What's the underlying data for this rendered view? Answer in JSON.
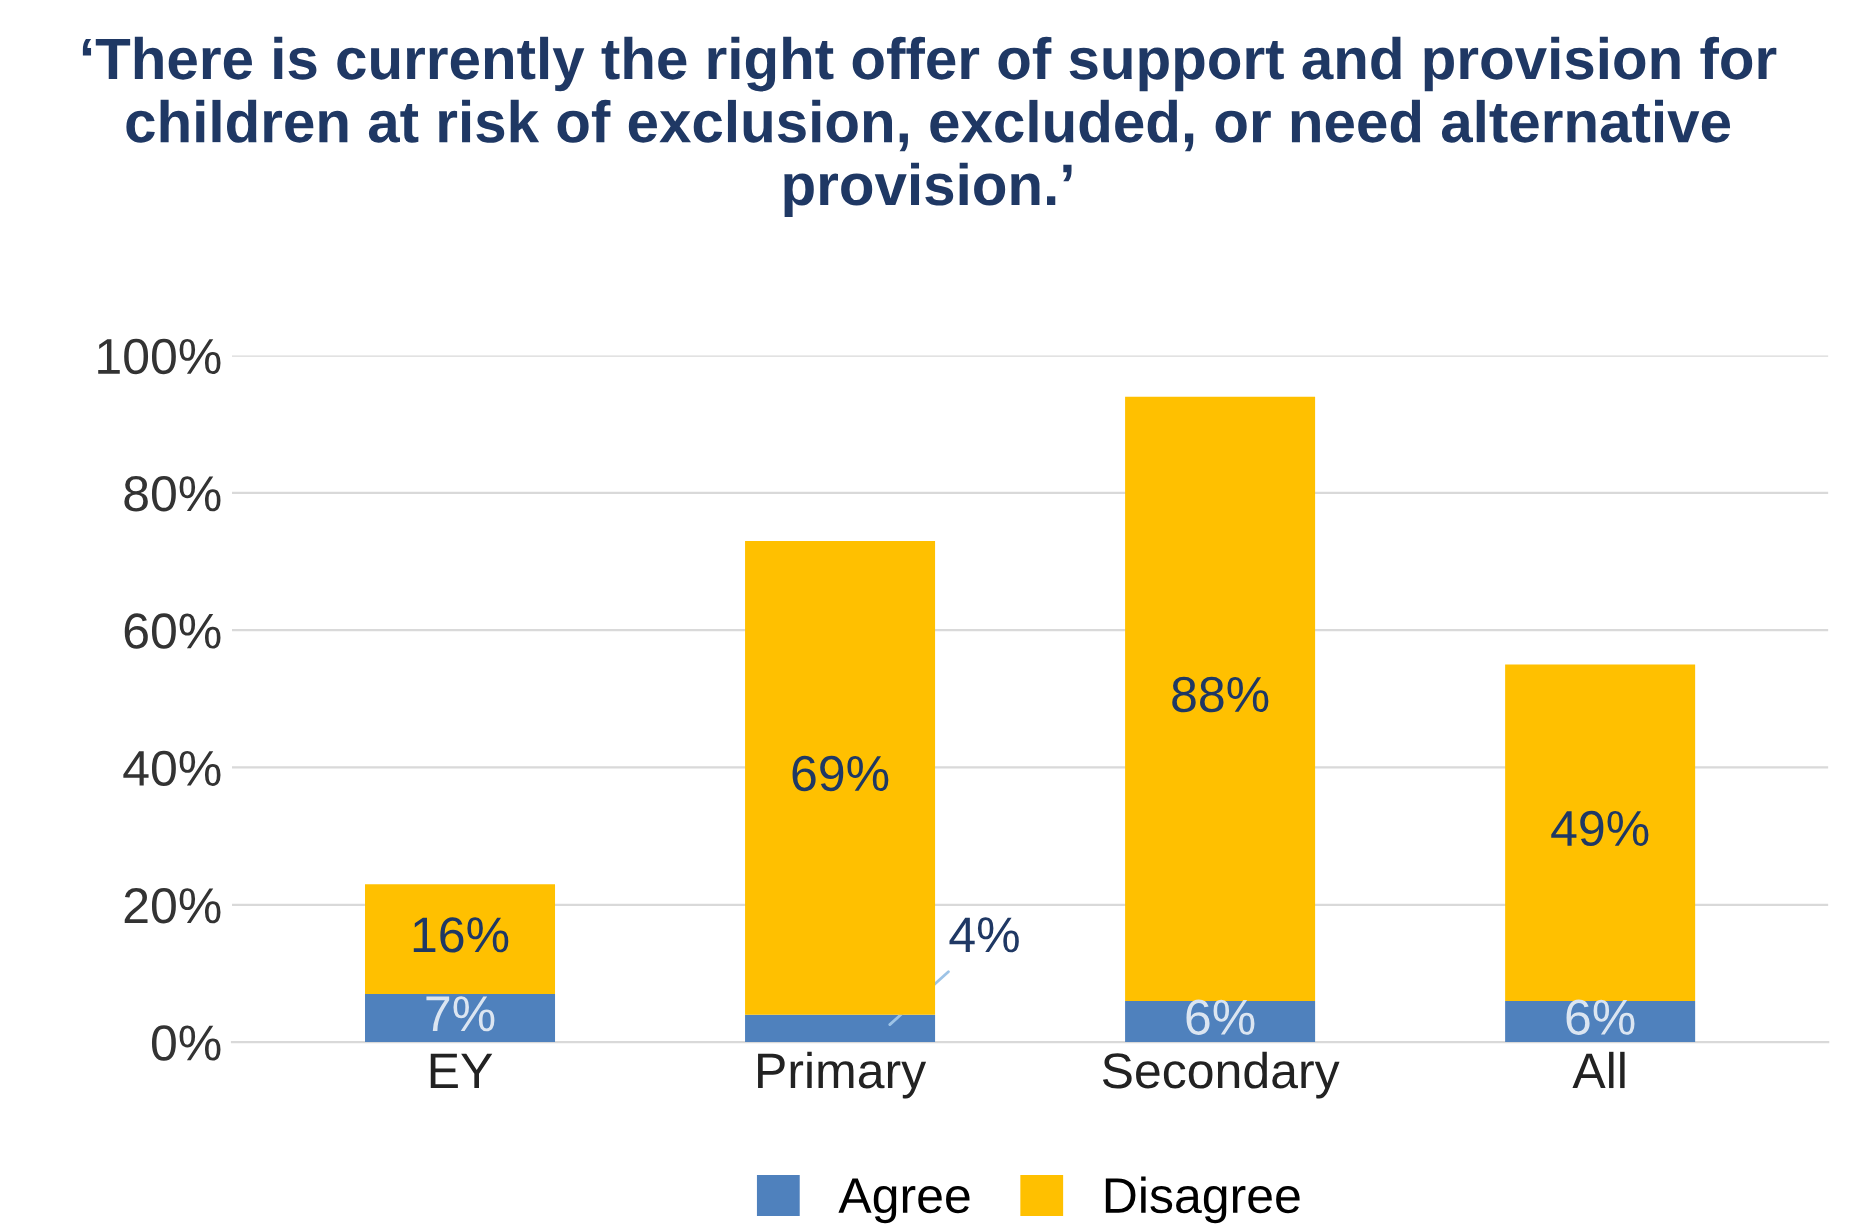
{
  "chart_data": {
    "type": "bar",
    "stacked": true,
    "title": "‘There is currently the right offer of support and provision for children at risk of exclusion, excluded, or need alternative provision.’",
    "categories": [
      "EY",
      "Primary",
      "Secondary",
      "All"
    ],
    "series": [
      {
        "name": "Agree",
        "color": "#4f81bd",
        "values": [
          7,
          4,
          6,
          6
        ],
        "value_labels": [
          "7%",
          "4%",
          "6%",
          "6%"
        ]
      },
      {
        "name": "Disagree",
        "color": "#ffc000",
        "values": [
          16,
          69,
          88,
          49
        ],
        "value_labels": [
          "16%",
          "69%",
          "88%",
          "49%"
        ]
      }
    ],
    "ylim": [
      0,
      100
    ],
    "yticks": [
      {
        "value": 0,
        "label": "0%"
      },
      {
        "value": 20,
        "label": "20%"
      },
      {
        "value": 40,
        "label": "40%"
      },
      {
        "value": 60,
        "label": "60%"
      },
      {
        "value": 80,
        "label": "80%"
      },
      {
        "value": 100,
        "label": "100%"
      }
    ],
    "grid": "y",
    "legend": "bottom"
  }
}
